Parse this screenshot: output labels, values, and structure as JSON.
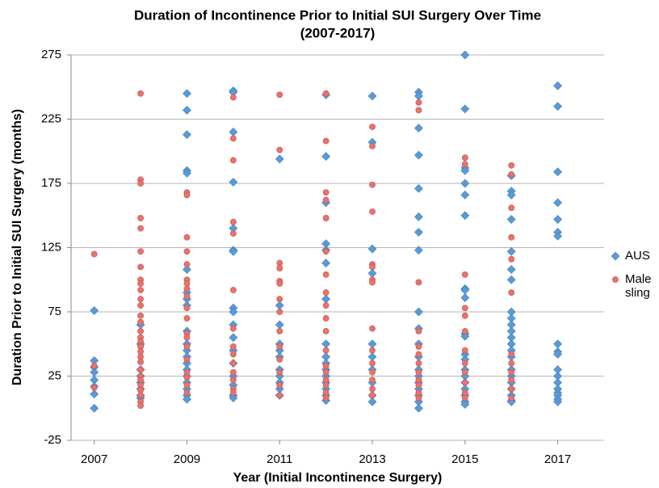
{
  "chart_data": {
    "type": "scatter",
    "title": "Duration of Incontinence Prior to Initial SUI Surgery Over Time",
    "subtitle": "(2007-2017)",
    "x_label": "Year (Initial Incontinence Surgery)",
    "y_label": "Duration Prior to Initial SUI Surgery (months)",
    "xlim": [
      2006.5,
      2018
    ],
    "xticks": [
      2007,
      2009,
      2011,
      2013,
      2015,
      2017
    ],
    "ylim": [
      -25,
      275
    ],
    "yticks": [
      -25,
      25,
      75,
      125,
      175,
      225,
      275
    ],
    "grid": true,
    "legend": "right",
    "series": [
      {
        "name": "AUS",
        "color": "#5b9bd5",
        "marker": "diamond",
        "x": [
          2007,
          2007,
          2007,
          2007,
          2007,
          2007,
          2007,
          2007,
          2008,
          2008,
          2008,
          2008,
          2008,
          2008,
          2008,
          2008,
          2009,
          2009,
          2009,
          2009,
          2009,
          2009,
          2009,
          2009,
          2009,
          2009,
          2009,
          2009,
          2009,
          2009,
          2009,
          2009,
          2009,
          2009,
          2009,
          2009,
          2010,
          2010,
          2010,
          2010,
          2010,
          2010,
          2010,
          2010,
          2010,
          2010,
          2010,
          2010,
          2010,
          2010,
          2010,
          2010,
          2010,
          2011,
          2011,
          2011,
          2011,
          2011,
          2011,
          2011,
          2011,
          2011,
          2011,
          2011,
          2012,
          2012,
          2012,
          2012,
          2012,
          2012,
          2012,
          2012,
          2012,
          2012,
          2012,
          2012,
          2012,
          2012,
          2012,
          2012,
          2013,
          2013,
          2013,
          2013,
          2013,
          2013,
          2013,
          2013,
          2013,
          2013,
          2014,
          2014,
          2014,
          2014,
          2014,
          2014,
          2014,
          2014,
          2014,
          2014,
          2014,
          2014,
          2014,
          2014,
          2014,
          2014,
          2014,
          2014,
          2014,
          2015,
          2015,
          2015,
          2015,
          2015,
          2015,
          2015,
          2015,
          2015,
          2015,
          2015,
          2015,
          2015,
          2015,
          2015,
          2015,
          2015,
          2015,
          2015,
          2015,
          2015,
          2016,
          2016,
          2016,
          2016,
          2016,
          2016,
          2016,
          2016,
          2016,
          2016,
          2016,
          2016,
          2016,
          2016,
          2016,
          2016,
          2016,
          2016,
          2016,
          2016,
          2016,
          2016,
          2017,
          2017,
          2017,
          2017,
          2017,
          2017,
          2017,
          2017,
          2017,
          2017,
          2017,
          2017,
          2017,
          2017,
          2017,
          2017,
          2017,
          2017
        ],
        "values": [
          76,
          37,
          32,
          28,
          22,
          17,
          11,
          0,
          65,
          50,
          30,
          25,
          20,
          15,
          10,
          8,
          245,
          232,
          213,
          185,
          183,
          108,
          90,
          85,
          80,
          60,
          50,
          45,
          40,
          35,
          30,
          25,
          20,
          15,
          10,
          7,
          247,
          246,
          215,
          176,
          140,
          123,
          122,
          78,
          75,
          65,
          55,
          45,
          35,
          25,
          18,
          10,
          8,
          194,
          80,
          65,
          50,
          45,
          40,
          30,
          25,
          20,
          15,
          10,
          244,
          196,
          160,
          128,
          123,
          113,
          85,
          50,
          40,
          35,
          30,
          25,
          20,
          15,
          10,
          6,
          243,
          207,
          124,
          105,
          50,
          40,
          30,
          20,
          10,
          5,
          246,
          243,
          218,
          197,
          171,
          149,
          137,
          123,
          75,
          62,
          50,
          40,
          30,
          25,
          20,
          15,
          10,
          5,
          0,
          275,
          233,
          187,
          185,
          175,
          166,
          150,
          93,
          92,
          86,
          58,
          56,
          42,
          38,
          30,
          25,
          20,
          15,
          10,
          5,
          3,
          181,
          169,
          166,
          147,
          122,
          108,
          100,
          75,
          70,
          65,
          60,
          55,
          50,
          45,
          40,
          30,
          25,
          20,
          15,
          10,
          6,
          5,
          251,
          235,
          184,
          160,
          147,
          137,
          134,
          50,
          44,
          42,
          30,
          25,
          20,
          15,
          12,
          10,
          7,
          5
        ]
      },
      {
        "name": "Male sling",
        "color": "#e8736c",
        "marker": "circle",
        "x": [
          2007,
          2007,
          2007,
          2008,
          2008,
          2008,
          2008,
          2008,
          2008,
          2008,
          2008,
          2008,
          2008,
          2008,
          2008,
          2008,
          2008,
          2008,
          2008,
          2008,
          2008,
          2008,
          2008,
          2008,
          2008,
          2008,
          2008,
          2008,
          2008,
          2008,
          2008,
          2008,
          2009,
          2009,
          2009,
          2009,
          2009,
          2009,
          2009,
          2009,
          2009,
          2009,
          2009,
          2009,
          2009,
          2009,
          2009,
          2009,
          2009,
          2009,
          2009,
          2010,
          2010,
          2010,
          2010,
          2010,
          2010,
          2010,
          2010,
          2010,
          2010,
          2010,
          2010,
          2010,
          2010,
          2011,
          2011,
          2011,
          2011,
          2011,
          2011,
          2011,
          2011,
          2011,
          2011,
          2011,
          2011,
          2011,
          2011,
          2012,
          2012,
          2012,
          2012,
          2012,
          2012,
          2012,
          2012,
          2012,
          2012,
          2012,
          2012,
          2012,
          2012,
          2012,
          2012,
          2012,
          2012,
          2013,
          2013,
          2013,
          2013,
          2013,
          2013,
          2013,
          2013,
          2013,
          2013,
          2013,
          2013,
          2013,
          2013,
          2013,
          2014,
          2014,
          2014,
          2014,
          2014,
          2014,
          2014,
          2014,
          2014,
          2014,
          2014,
          2014,
          2015,
          2015,
          2015,
          2015,
          2015,
          2015,
          2015,
          2015,
          2015,
          2015,
          2015,
          2015,
          2016,
          2016,
          2016,
          2016,
          2016,
          2016,
          2016,
          2016,
          2016,
          2016,
          2016,
          2016
        ],
        "values": [
          120,
          33,
          16,
          245,
          178,
          175,
          148,
          140,
          122,
          110,
          100,
          97,
          92,
          85,
          80,
          72,
          67,
          60,
          55,
          52,
          48,
          44,
          40,
          36,
          30,
          25,
          22,
          18,
          14,
          10,
          5,
          2,
          168,
          166,
          133,
          122,
          112,
          100,
          97,
          93,
          87,
          78,
          70,
          58,
          55,
          48,
          38,
          28,
          24,
          18,
          12,
          242,
          210,
          193,
          145,
          136,
          92,
          62,
          48,
          42,
          35,
          28,
          22,
          15,
          12,
          244,
          201,
          113,
          109,
          99,
          97,
          85,
          75,
          60,
          48,
          38,
          28,
          18,
          10,
          245,
          208,
          168,
          162,
          148,
          122,
          104,
          90,
          80,
          70,
          60,
          45,
          33,
          28,
          22,
          18,
          12,
          8,
          219,
          204,
          174,
          153,
          112,
          110,
          100,
          98,
          62,
          45,
          35,
          28,
          22,
          15,
          10,
          238,
          232,
          98,
          60,
          48,
          42,
          35,
          28,
          22,
          18,
          12,
          8,
          195,
          190,
          104,
          78,
          72,
          60,
          45,
          35,
          28,
          20,
          12,
          8,
          189,
          182,
          156,
          133,
          116,
          90,
          42,
          35,
          28,
          22,
          15,
          8
        ]
      }
    ]
  }
}
